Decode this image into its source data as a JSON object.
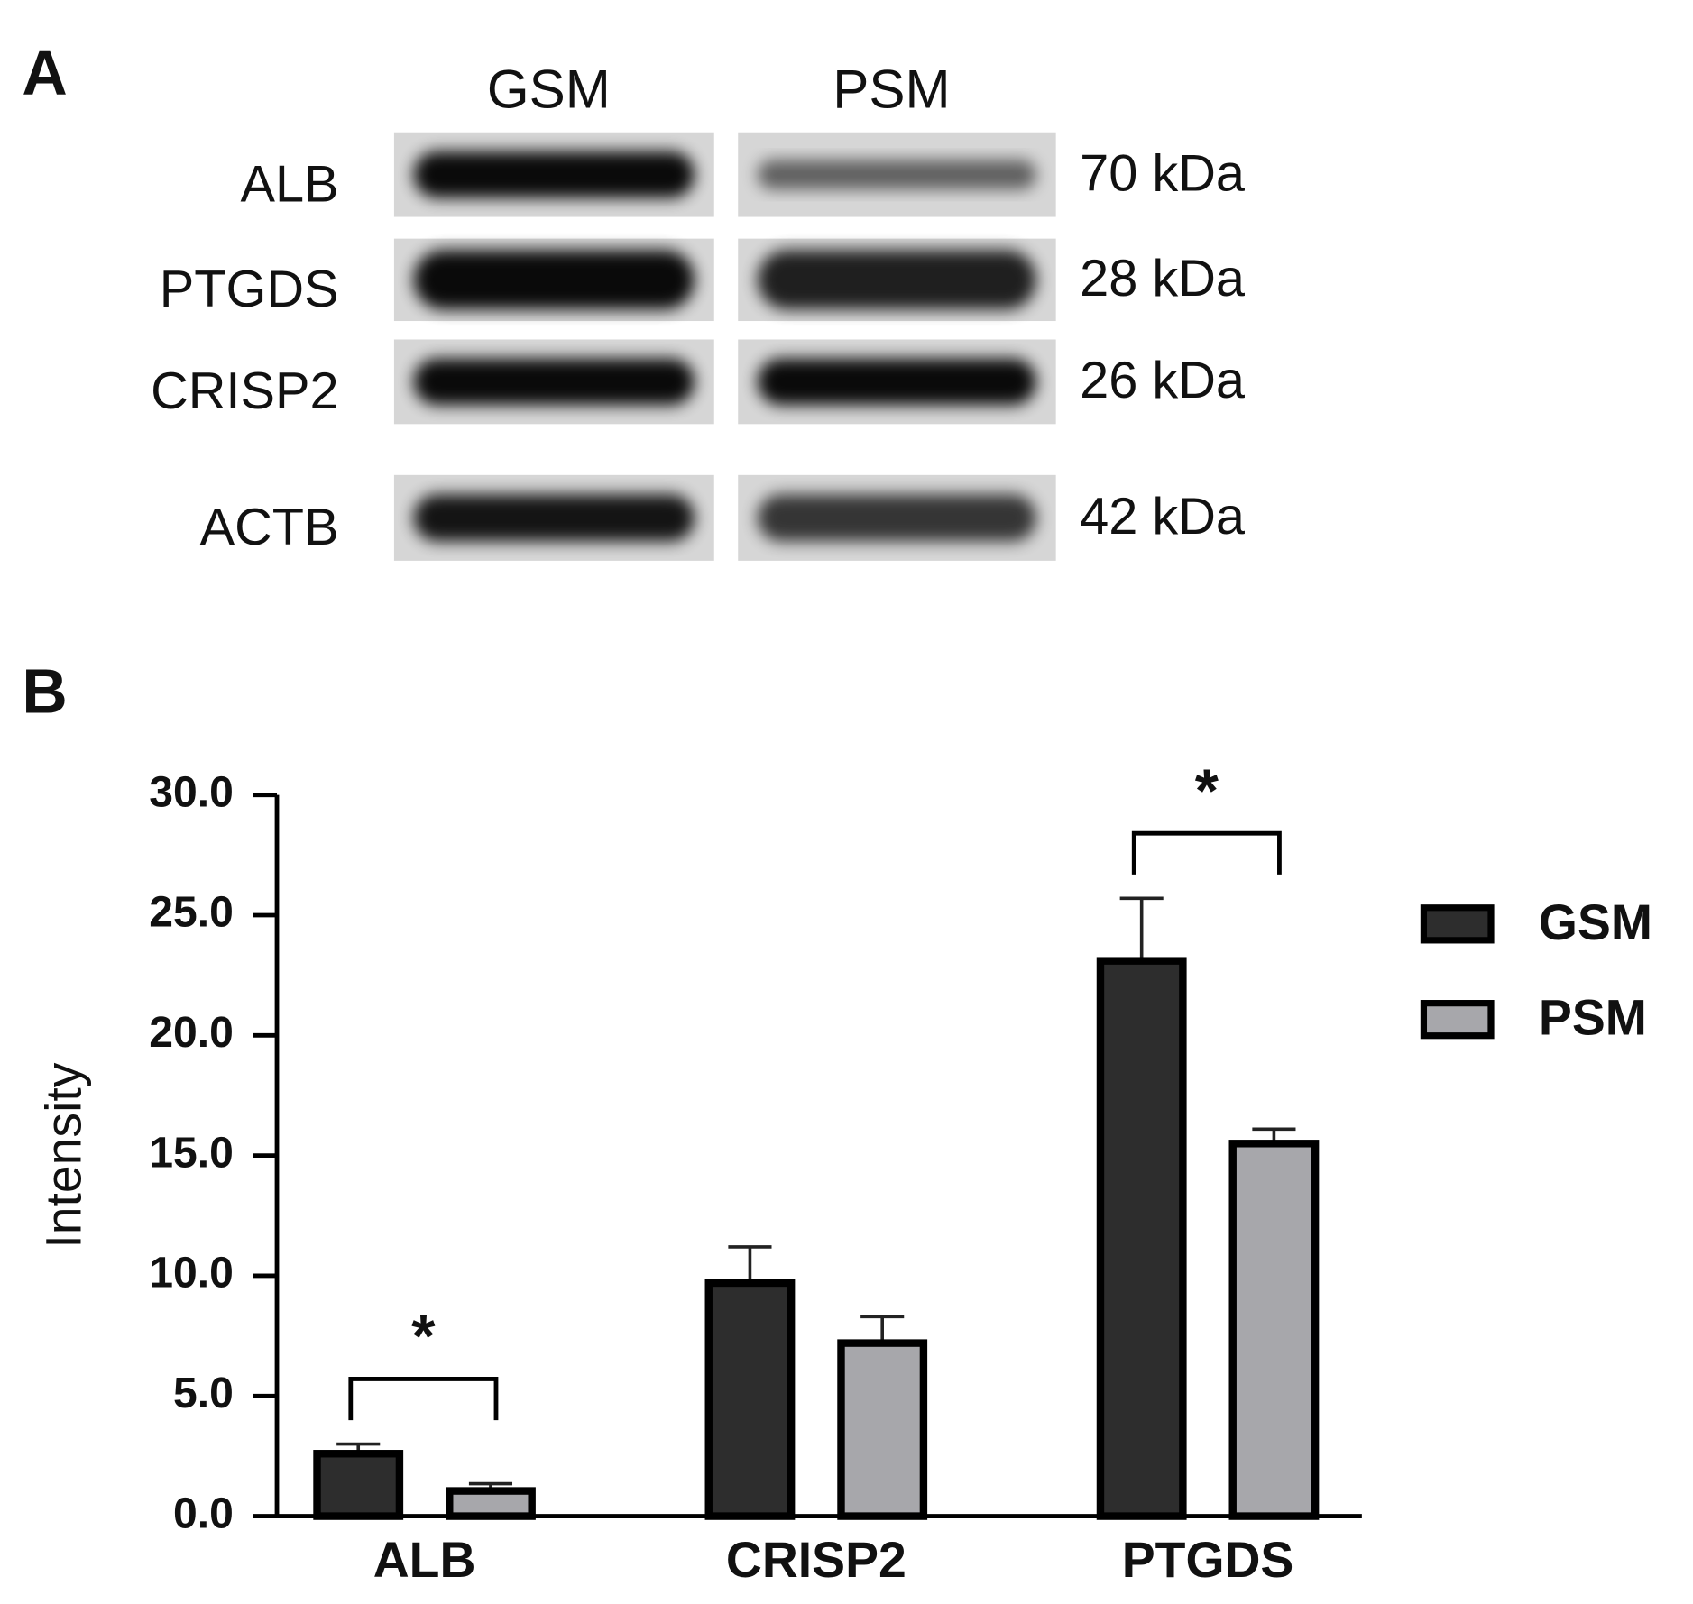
{
  "panel_a": {
    "label": "A",
    "columns": [
      "GSM",
      "PSM"
    ],
    "rows": [
      {
        "protein": "ALB",
        "size": "70 kDa"
      },
      {
        "protein": "PTGDS",
        "size": "28 kDa"
      },
      {
        "protein": "CRISP2",
        "size": "26 kDa"
      },
      {
        "protein": "ACTB",
        "size": "42 kDa"
      }
    ]
  },
  "chart_data": {
    "type": "bar",
    "panel_label": "B",
    "y_label": "Intensity",
    "categories": [
      "ALB",
      "CRISP2",
      "PTGDS"
    ],
    "series": [
      {
        "name": "GSM",
        "color": "#2d2d2d",
        "values": [
          2.6,
          9.7,
          23.1
        ],
        "errors": [
          0.4,
          1.5,
          2.6
        ]
      },
      {
        "name": "PSM",
        "color": "#a7a7ab",
        "values": [
          1.05,
          7.2,
          15.5
        ],
        "errors": [
          0.3,
          1.1,
          0.6
        ]
      }
    ],
    "ylim": [
      0,
      30
    ],
    "yticks": [
      {
        "value": 0,
        "label": "0.0"
      },
      {
        "value": 5,
        "label": "5.0"
      },
      {
        "value": 10,
        "label": "10.0"
      },
      {
        "value": 15,
        "label": "15.0"
      },
      {
        "value": 20,
        "label": "20.0"
      },
      {
        "value": 25,
        "label": "25.0"
      },
      {
        "value": 30,
        "label": "30.0"
      }
    ],
    "annotations": [
      {
        "text": "*",
        "category": 0
      },
      {
        "text": "*",
        "category": 2
      }
    ],
    "legend": "right"
  }
}
